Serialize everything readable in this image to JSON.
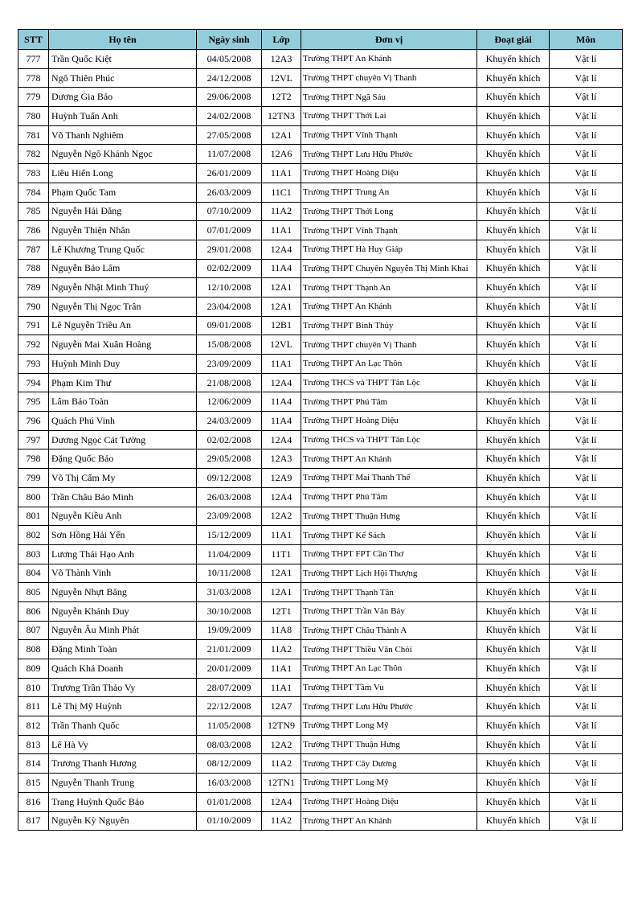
{
  "header": {
    "stt": "STT",
    "name": "Họ tên",
    "dob": "Ngày sinh",
    "class": "Lớp",
    "unit": "Đơn vị",
    "award": "Đoạt giải",
    "subject": "Môn"
  },
  "header_color": "#92cddc",
  "rows": [
    [
      "777",
      "Trần Quốc Kiệt",
      "04/05/2008",
      "12A3",
      "Trường THPT An Khánh",
      "Khuyến khích",
      "Vật lí"
    ],
    [
      "778",
      "Ngô Thiên Phúc",
      "24/12/2008",
      "12VL",
      "Trường THPT chuyên Vị Thanh",
      "Khuyến khích",
      "Vật lí"
    ],
    [
      "779",
      "Dương Gia Bảo",
      "29/06/2008",
      "12T2",
      "Trường THPT Ngã Sáu",
      "Khuyến khích",
      "Vật lí"
    ],
    [
      "780",
      "Huỳnh Tuấn Anh",
      "24/02/2008",
      "12TN3",
      "Trường THPT Thới Lai",
      "Khuyến khích",
      "Vật lí"
    ],
    [
      "781",
      "Võ Thanh Nghiêm",
      "27/05/2008",
      "12A1",
      "Trường THPT Vĩnh Thạnh",
      "Khuyến khích",
      "Vật lí"
    ],
    [
      "782",
      "Nguyễn Ngô Khánh Ngọc",
      "11/07/2008",
      "12A6",
      "Trường THPT Lưu Hữu Phước",
      "Khuyến khích",
      "Vật lí"
    ],
    [
      "783",
      "Liêu Hiển Long",
      "26/01/2009",
      "11A1",
      "Trường THPT Hoàng Diệu",
      "Khuyến khích",
      "Vật lí"
    ],
    [
      "784",
      "Phạm Quốc Tam",
      "26/03/2009",
      "11C1",
      "Trường THPT Trung An",
      "Khuyến khích",
      "Vật lí"
    ],
    [
      "785",
      "Nguyễn Hải Đăng",
      "07/10/2009",
      "11A2",
      "Trường THPT Thới Long",
      "Khuyến khích",
      "Vật lí"
    ],
    [
      "786",
      "Nguyễn Thiện Nhân",
      "07/01/2009",
      "11A1",
      "Trường THPT Vĩnh Thạnh",
      "Khuyến khích",
      "Vật lí"
    ],
    [
      "787",
      "Lê Khương Trung Quốc",
      "29/01/2008",
      "12A4",
      "Trường THPT Hà Huy Giáp",
      "Khuyến khích",
      "Vật lí"
    ],
    [
      "788",
      "Nguyễn Bảo Lâm",
      "02/02/2009",
      "11A4",
      "Trường THPT Chuyên Nguyễn Thị Minh Khai",
      "Khuyến khích",
      "Vật lí"
    ],
    [
      "789",
      "Nguyễn Nhật Minh Thuý",
      "12/10/2008",
      "12A1",
      "Trường THPT Thạnh An",
      "Khuyến khích",
      "Vật lí"
    ],
    [
      "790",
      "Nguyễn Thị Ngọc Trân",
      "23/04/2008",
      "12A1",
      "Trường THPT An Khánh",
      "Khuyến khích",
      "Vật lí"
    ],
    [
      "791",
      "Lê Nguyễn Triều An",
      "09/01/2008",
      "12B1",
      "Trường THPT Bình Thủy",
      "Khuyến khích",
      "Vật lí"
    ],
    [
      "792",
      "Nguyễn Mai Xuân Hoàng",
      "15/08/2008",
      "12VL",
      "Trường THPT chuyên Vị Thanh",
      "Khuyến khích",
      "Vật lí"
    ],
    [
      "793",
      "Huỳnh Minh Duy",
      "23/09/2009",
      "11A1",
      "Trường THPT An Lạc Thôn",
      "Khuyến khích",
      "Vật lí"
    ],
    [
      "794",
      "Phạm Kim Thư",
      "21/08/2008",
      "12A4",
      "Trường THCS và THPT Tân Lộc",
      "Khuyến khích",
      "Vật lí"
    ],
    [
      "795",
      "Lâm Bảo Toàn",
      "12/06/2009",
      "11A4",
      "Trường THPT Phú Tâm",
      "Khuyến khích",
      "Vật lí"
    ],
    [
      "796",
      "Quách Phú Vinh",
      "24/03/2009",
      "11A4",
      "Trường THPT Hoàng Diệu",
      "Khuyến khích",
      "Vật lí"
    ],
    [
      "797",
      "Dương Ngọc Cát Tường",
      "02/02/2008",
      "12A4",
      "Trường THCS và THPT Tân Lộc",
      "Khuyến khích",
      "Vật lí"
    ],
    [
      "798",
      "Đặng Quốc Bảo",
      "29/05/2008",
      "12A3",
      "Trường THPT An Khánh",
      "Khuyến khích",
      "Vật lí"
    ],
    [
      "799",
      "Võ Thị Cẩm My",
      "09/12/2008",
      "12A9",
      "Trường THPT Mai Thanh Thế",
      "Khuyến khích",
      "Vật lí"
    ],
    [
      "800",
      "Trần Châu Bảo Minh",
      "26/03/2008",
      "12A4",
      "Trường THPT Phú Tâm",
      "Khuyến khích",
      "Vật lí"
    ],
    [
      "801",
      "Nguyễn Kiều Anh",
      "23/09/2008",
      "12A2",
      "Trường THPT Thuận Hưng",
      "Khuyến khích",
      "Vật lí"
    ],
    [
      "802",
      "Sơn Hồng Hải Yến",
      "15/12/2009",
      "11A1",
      "Trường THPT Kế Sách",
      "Khuyến khích",
      "Vật lí"
    ],
    [
      "803",
      "Lương Thái Hạo Anh",
      "11/04/2009",
      "11T1",
      "Trường THPT FPT Cần Thơ",
      "Khuyến khích",
      "Vật lí"
    ],
    [
      "804",
      "Võ Thành Vinh",
      "10/11/2008",
      "12A1",
      "Trường THPT Lịch Hội Thượng",
      "Khuyến khích",
      "Vật lí"
    ],
    [
      "805",
      "Nguyễn Nhựt Băng",
      "31/03/2008",
      "12A1",
      "Trường THPT Thạnh Tân",
      "Khuyến khích",
      "Vật lí"
    ],
    [
      "806",
      "Nguyễn Khánh Duy",
      "30/10/2008",
      "12T1",
      "Trường THPT Trần Văn Bảy",
      "Khuyến khích",
      "Vật lí"
    ],
    [
      "807",
      "Nguyễn Âu Minh Phát",
      "19/09/2009",
      "11A8",
      "Trường THPT Châu Thành A",
      "Khuyến khích",
      "Vật lí"
    ],
    [
      "808",
      "Đặng Minh Toàn",
      "21/01/2009",
      "11A2",
      "Trường THPT Thiều Văn Chỏi",
      "Khuyến khích",
      "Vật lí"
    ],
    [
      "809",
      "Quách Khả Doanh",
      "20/01/2009",
      "11A1",
      "Trường THPT An Lạc Thôn",
      "Khuyến khích",
      "Vật lí"
    ],
    [
      "810",
      "Trương Trần Thảo Vy",
      "28/07/2009",
      "11A1",
      "Trường THPT Tầm Vu",
      "Khuyến khích",
      "Vật lí"
    ],
    [
      "811",
      "Lê Thị Mỹ Huỳnh",
      "22/12/2008",
      "12A7",
      "Trường THPT Lưu Hữu Phước",
      "Khuyến khích",
      "Vật lí"
    ],
    [
      "812",
      "Trần Thanh Quốc",
      "11/05/2008",
      "12TN9",
      "Trường THPT Long Mỹ",
      "Khuyến khích",
      "Vật lí"
    ],
    [
      "813",
      "Lê Hà Vy",
      "08/03/2008",
      "12A2",
      "Trường THPT Thuận Hưng",
      "Khuyến khích",
      "Vật lí"
    ],
    [
      "814",
      "Trương Thanh Hương",
      "08/12/2009",
      "11A2",
      "Trường THPT Cây Dương",
      "Khuyến khích",
      "Vật lí"
    ],
    [
      "815",
      "Nguyễn Thanh Trung",
      "16/03/2008",
      "12TN1",
      "Trường THPT Long Mỹ",
      "Khuyến khích",
      "Vật lí"
    ],
    [
      "816",
      "Trang Huỳnh Quốc Bảo",
      "01/01/2008",
      "12A4",
      "Trường THPT Hoàng Diệu",
      "Khuyến khích",
      "Vật lí"
    ],
    [
      "817",
      "Nguyễn Kỳ Nguyên",
      "01/10/2009",
      "11A2",
      "Trường THPT An Khánh",
      "Khuyến khích",
      "Vật lí"
    ]
  ]
}
